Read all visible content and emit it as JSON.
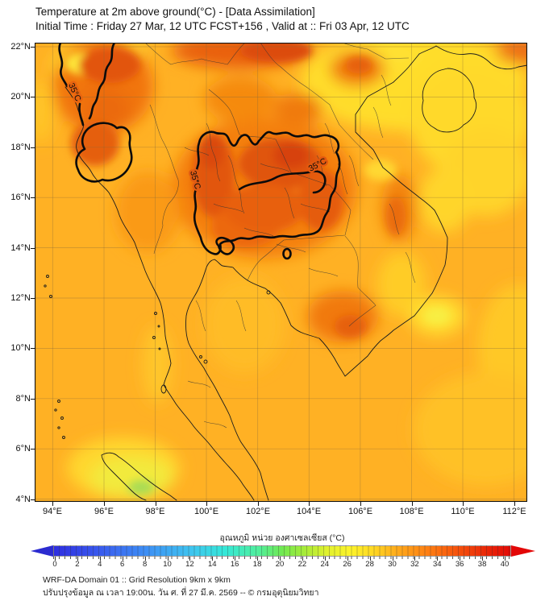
{
  "title": {
    "line1": "Temperature at 2m above ground(°C) - [Data Assimilation]",
    "line2": "Initial Time : Friday 27 Mar, 12 UTC FCST+156 , Valid at :: Fri 03 Apr, 12 UTC"
  },
  "axes": {
    "lat_labels": [
      "22°N",
      "20°N",
      "18°N",
      "16°N",
      "14°N",
      "12°N",
      "10°N",
      "8°N",
      "6°N",
      "4°N"
    ],
    "lon_labels": [
      "94°E",
      "96°E",
      "98°E",
      "100°E",
      "102°E",
      "104°E",
      "106°E",
      "108°E",
      "110°E",
      "112°E"
    ]
  },
  "map": {
    "contour_label": "35°C",
    "contour_level_c": 35,
    "base_color": "#FFB124",
    "hot_color": "#DC4A12",
    "cool_color": "#FFE93A"
  },
  "colorbar": {
    "label_thai": "อุณหภูมิ หน่วย องศาเซลเซียส (°C)",
    "ticks": [
      "0",
      "2",
      "4",
      "6",
      "8",
      "10",
      "12",
      "14",
      "16",
      "18",
      "20",
      "22",
      "24",
      "26",
      "28",
      "30",
      "32",
      "34",
      "36",
      "38",
      "40"
    ],
    "range": [
      0,
      40
    ],
    "left_arrow_color": "#2B2BD0",
    "right_arrow_color": "#E30707",
    "stops": [
      [
        0,
        "#2E2EE0"
      ],
      [
        4,
        "#3A5BEE"
      ],
      [
        8,
        "#3E8EF5"
      ],
      [
        12,
        "#3FC4F0"
      ],
      [
        15,
        "#35E8D8"
      ],
      [
        18,
        "#52EE9A"
      ],
      [
        20,
        "#71E952"
      ],
      [
        22,
        "#A8EB38"
      ],
      [
        24,
        "#E2F12E"
      ],
      [
        26,
        "#FDF32B"
      ],
      [
        28,
        "#FFD824"
      ],
      [
        30,
        "#FFAC1C"
      ],
      [
        32,
        "#FF8C16"
      ],
      [
        34,
        "#FB6A10"
      ],
      [
        36,
        "#F2480C"
      ],
      [
        38,
        "#E92608"
      ],
      [
        40,
        "#E30B07"
      ]
    ]
  },
  "footer": {
    "line1": "WRF-DA Domain 01 :: Grid Resolution 9km x 9km",
    "line2": "ปรับปรุงข้อมูล ณ เวลา 19:00น. วัน ศ. ที่ 27 มี.ค. 2569 -- © กรมอุตุนิยมวิทยา"
  },
  "chart_data": {
    "type": "heatmap",
    "title": "Temperature at 2m above ground(°C) - [Data Assimilation]",
    "subtitle": "Initial Time : Friday 27 Mar, 12 UTC FCST+156 , Valid at :: Fri 03 Apr, 12 UTC",
    "x_tick_labels": [
      "94°E",
      "96°E",
      "98°E",
      "100°E",
      "102°E",
      "104°E",
      "106°E",
      "108°E",
      "110°E",
      "112°E"
    ],
    "y_tick_labels": [
      "22°N",
      "20°N",
      "18°N",
      "16°N",
      "14°N",
      "12°N",
      "10°N",
      "8°N",
      "6°N",
      "4°N"
    ],
    "lon_range": [
      93.3,
      112.5
    ],
    "lat_range": [
      3.9,
      22.2
    ],
    "colorbar_label": "อุณหภูมิ หน่วย องศาเซลเซียส (°C)",
    "colorbar_range_c": [
      0,
      40
    ],
    "colorbar_tick_step_c": 2,
    "contour_level_c": 35,
    "grid_estimate_c": {
      "lons": [
        94,
        96,
        98,
        100,
        102,
        104,
        106,
        108,
        110,
        112
      ],
      "lats": [
        22,
        20,
        18,
        16,
        14,
        12,
        10,
        8,
        6,
        4
      ],
      "values": [
        [
          34,
          36,
          33,
          36,
          37,
          33,
          32,
          31,
          30,
          34
        ],
        [
          34,
          36,
          33,
          34,
          34,
          33,
          31,
          30,
          30,
          31
        ],
        [
          33,
          36,
          33,
          35,
          36,
          36,
          33,
          31,
          31,
          31
        ],
        [
          33,
          34,
          33,
          36,
          37,
          36,
          34,
          32,
          31,
          32
        ],
        [
          33,
          33,
          33,
          35,
          35,
          34,
          33,
          32,
          31,
          32
        ],
        [
          33,
          33,
          33,
          33,
          33,
          33,
          34,
          32,
          30,
          32
        ],
        [
          33,
          33,
          32,
          33,
          33,
          34,
          35,
          33,
          32,
          32
        ],
        [
          33,
          33,
          32,
          33,
          33,
          33,
          33,
          32,
          32,
          32
        ],
        [
          33,
          33,
          33,
          33,
          33,
          33,
          33,
          33,
          32,
          32
        ],
        [
          33,
          31,
          30,
          33,
          33,
          33,
          33,
          33,
          33,
          33
        ]
      ]
    },
    "legend_position": "bottom",
    "grid": true
  }
}
